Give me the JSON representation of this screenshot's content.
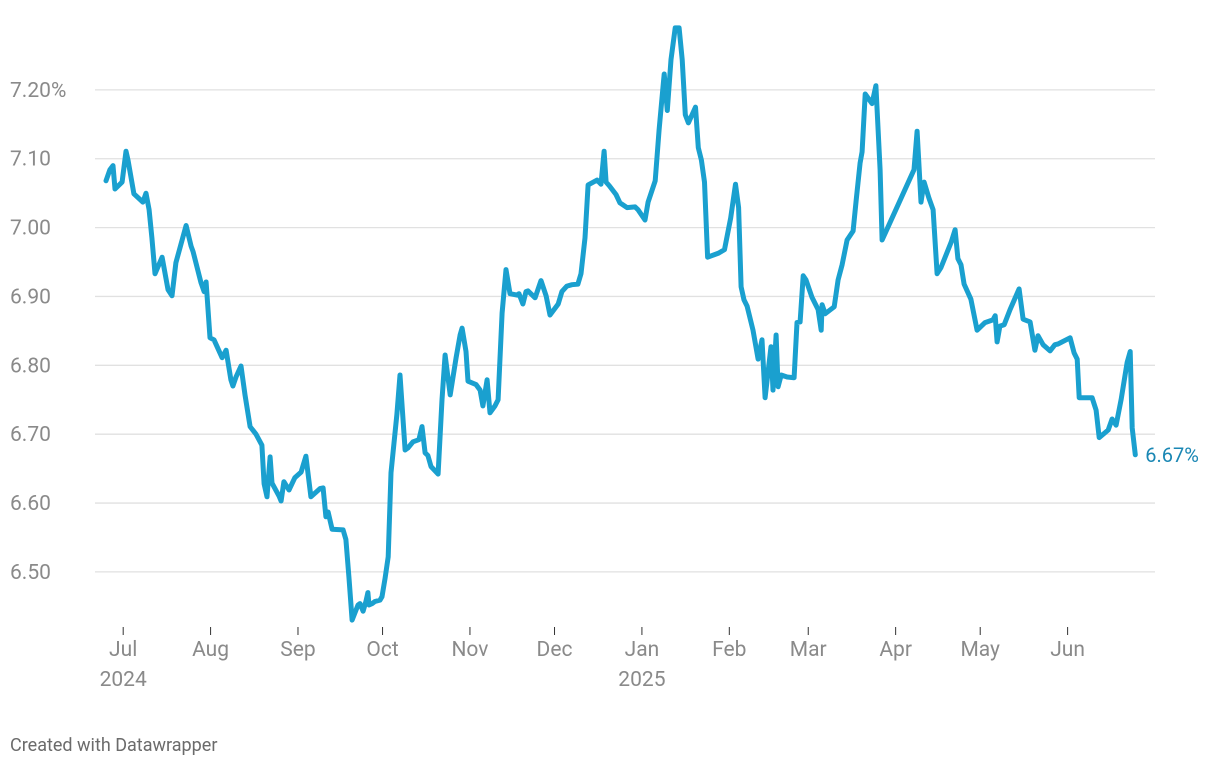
{
  "chart_data": {
    "type": "line",
    "x": [
      -6.1,
      -4.7,
      -3.6,
      -2.9,
      -0.4,
      1.0,
      1.7,
      3.8,
      7.0,
      8.1,
      9.2,
      10.2,
      11.3,
      13.8,
      15.9,
      17.3,
      18.7,
      22.3,
      24.1,
      24.8,
      27.6,
      28.7,
      29.4,
      30.8,
      32.2,
      35.1,
      36.5,
      37.2,
      38.2,
      38.9,
      40.0,
      41.8,
      43.2,
      45.0,
      47.1,
      49.2,
      50.0,
      51.0,
      52.1,
      52.8,
      55.3,
      56.0,
      57.0,
      58.8,
      60.9,
      63.1,
      64.8,
      66.6,
      69.8,
      70.9,
      71.9,
      72.7,
      74.1,
      78.0,
      79.0,
      80.1,
      81.2,
      83.3,
      84.0,
      85.1,
      86.1,
      86.8,
      87.2,
      88.3,
      89.3,
      91.1,
      91.8,
      92.9,
      94.0,
      95.0,
      97.1,
      98.2,
      100.0,
      101.0,
      102.8,
      104.9,
      106.0,
      107.1,
      108.1,
      109.2,
      111.7,
      113.1,
      114.2,
      116.0,
      118.1,
      119.5,
      120.2,
      121.6,
      122.3,
      125.2,
      126.6,
      127.6,
      129.1,
      130.1,
      131.9,
      133.0,
      134.4,
      135.8,
      137.2,
      139.7,
      140.4,
      141.8,
      142.9,
      143.6,
      146.1,
      148.2,
      150.0,
      151.4,
      154.3,
      155.6,
      157.4,
      159.2,
      161.3,
      162.4,
      163.8,
      164.9,
      168.1,
      169.5,
      170.6,
      171.3,
      172.4,
      174.8,
      176.2,
      178.7,
      181.6,
      182.6,
      185.1,
      186.2,
      188.7,
      190.1,
      191.9,
      193.0,
      194.3,
      195.8,
      197.2,
      198.3,
      199.4,
      200.5,
      203.0,
      204.0,
      205.1,
      206.2,
      207.3,
      211.2,
      213.3,
      215.5,
      217.2,
      218.3,
      219.2,
      220.2,
      221.3,
      223.4,
      225.2,
      226.6,
      227.7,
      229.8,
      230.5,
      231.6,
      232.3,
      233.4,
      235.5,
      238.0,
      239.0,
      240.1,
      241.2,
      242.2,
      244.3,
      246.5,
      247.6,
      247.9,
      249.0,
      252.2,
      253.6,
      255.0,
      256.8,
      258.9,
      260.0,
      261.4,
      262.1,
      263.2,
      265.6,
      267.0,
      268.5,
      269.2,
      280.5,
      281.6,
      283.0,
      284.1,
      285.8,
      287.3,
      288.7,
      290.1,
      293.7,
      295.1,
      296.1,
      297.2,
      298.3,
      300.7,
      302.9,
      305.7,
      308.5,
      309.3,
      310.0,
      311.0,
      312.5,
      314.6,
      317.8,
      319.2,
      321.7,
      323.4,
      324.5,
      326.3,
      328.8,
      330.5,
      331.6,
      335.9,
      337.3,
      338.4,
      339.1,
      343.7,
      345.1,
      346.2,
      349.4,
      350.8,
      352.2,
      354.0,
      356.1,
      357.2,
      357.9,
      359.0
    ],
    "series": [
      {
        "color": "#1aa0cf",
        "values": [
          7.068,
          7.084,
          7.09,
          7.056,
          7.066,
          7.111,
          7.098,
          7.049,
          7.037,
          7.05,
          7.026,
          6.985,
          6.933,
          6.957,
          6.91,
          6.901,
          6.949,
          7.003,
          6.973,
          6.965,
          6.92,
          6.907,
          6.921,
          6.84,
          6.837,
          6.811,
          6.822,
          6.804,
          6.779,
          6.77,
          6.783,
          6.799,
          6.757,
          6.711,
          6.7,
          6.684,
          6.628,
          6.609,
          6.667,
          6.629,
          6.61,
          6.603,
          6.631,
          6.619,
          6.637,
          6.645,
          6.668,
          6.609,
          6.621,
          6.622,
          6.58,
          6.587,
          6.562,
          6.561,
          6.547,
          6.491,
          6.43,
          6.452,
          6.454,
          6.443,
          6.457,
          6.47,
          6.452,
          6.454,
          6.457,
          6.459,
          6.464,
          6.491,
          6.522,
          6.644,
          6.729,
          6.786,
          6.677,
          6.68,
          6.689,
          6.692,
          6.711,
          6.673,
          6.669,
          6.653,
          6.642,
          6.75,
          6.815,
          6.757,
          6.811,
          6.844,
          6.854,
          6.82,
          6.777,
          6.772,
          6.764,
          6.741,
          6.779,
          6.731,
          6.741,
          6.75,
          6.876,
          6.939,
          6.904,
          6.902,
          6.904,
          6.889,
          6.907,
          6.908,
          6.898,
          6.923,
          6.901,
          6.873,
          6.889,
          6.907,
          6.915,
          6.917,
          6.918,
          6.933,
          6.985,
          7.062,
          7.069,
          7.063,
          7.111,
          7.066,
          7.061,
          7.048,
          7.036,
          7.029,
          7.03,
          7.026,
          7.011,
          7.037,
          7.068,
          7.142,
          7.223,
          7.17,
          7.244,
          7.29,
          7.29,
          7.244,
          7.164,
          7.152,
          7.175,
          7.116,
          7.098,
          7.066,
          6.957,
          6.963,
          6.968,
          7.014,
          7.063,
          7.029,
          6.914,
          6.895,
          6.886,
          6.851,
          6.809,
          6.837,
          6.753,
          6.827,
          6.764,
          6.844,
          6.769,
          6.786,
          6.783,
          6.782,
          6.862,
          6.863,
          6.93,
          6.924,
          6.899,
          6.881,
          6.851,
          6.888,
          6.875,
          6.885,
          6.924,
          6.946,
          6.982,
          6.995,
          7.04,
          7.094,
          7.11,
          7.194,
          7.18,
          7.206,
          7.084,
          6.982,
          7.084,
          7.14,
          7.037,
          7.066,
          7.043,
          7.026,
          6.933,
          6.942,
          6.979,
          6.997,
          6.955,
          6.946,
          6.918,
          6.896,
          6.851,
          6.862,
          6.866,
          6.872,
          6.834,
          6.857,
          6.859,
          6.881,
          6.911,
          6.867,
          6.863,
          6.822,
          6.843,
          6.83,
          6.821,
          6.83,
          6.831,
          6.84,
          6.818,
          6.809,
          6.753,
          6.753,
          6.735,
          6.695,
          6.706,
          6.722,
          6.713,
          6.751,
          6.804,
          6.82,
          6.709,
          6.67
        ]
      }
    ],
    "annotations": [
      {
        "x": 359.0,
        "y": 6.67,
        "label": "6.67%"
      }
    ],
    "xlim": [
      -10,
      366
    ],
    "xticks": [
      {
        "value": 0,
        "label": "Jul"
      },
      {
        "value": 31,
        "label": "Aug"
      },
      {
        "value": 62,
        "label": "Sep"
      },
      {
        "value": 92,
        "label": "Oct"
      },
      {
        "value": 123,
        "label": "Nov"
      },
      {
        "value": 153,
        "label": "Dec"
      },
      {
        "value": 184,
        "label": "Jan"
      },
      {
        "value": 215,
        "label": "Feb"
      },
      {
        "value": 243,
        "label": "Mar"
      },
      {
        "value": 274,
        "label": "Apr"
      },
      {
        "value": 304,
        "label": "May"
      },
      {
        "value": 335,
        "label": "Jun"
      }
    ],
    "xtick_years": [
      {
        "value": 0,
        "label": "2024"
      },
      {
        "value": 184,
        "label": "2025"
      }
    ],
    "ylim": [
      6.42,
      7.3
    ],
    "yticks": [
      {
        "value": 6.5,
        "label": "6.50"
      },
      {
        "value": 6.6,
        "label": "6.60"
      },
      {
        "value": 6.7,
        "label": "6.70"
      },
      {
        "value": 6.8,
        "label": "6.80"
      },
      {
        "value": 6.9,
        "label": "6.90"
      },
      {
        "value": 7.0,
        "label": "7.00"
      },
      {
        "value": 7.1,
        "label": "7.10"
      },
      {
        "value": 7.2,
        "label": "7.20%"
      }
    ],
    "grid": true,
    "credit": "Created with Datawrapper"
  }
}
